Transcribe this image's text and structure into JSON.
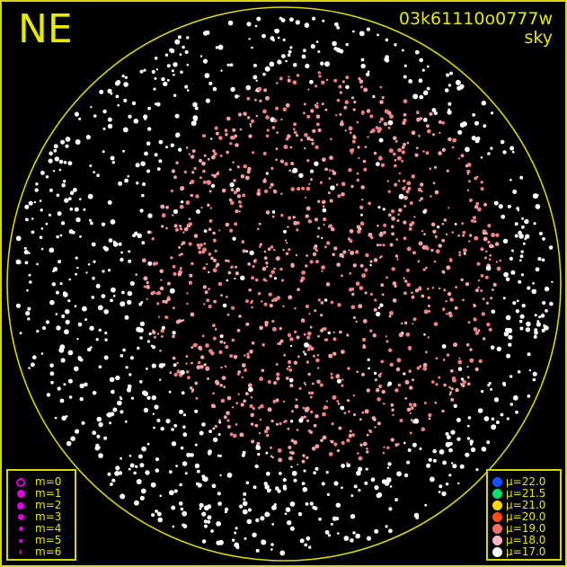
{
  "header": {
    "direction": "NE",
    "filename": "03k61110o0777w",
    "image_type": "sky"
  },
  "colors": {
    "frame": "#e8e800",
    "horizon_circle": "#e8e800",
    "magnitude_symbol": "#e000e0"
  },
  "magnitude_legend": [
    {
      "label": "m=0",
      "style": "ring"
    },
    {
      "label": "m=1",
      "style": "dot"
    },
    {
      "label": "m=2",
      "style": "dot"
    },
    {
      "label": "m=3",
      "style": "dot"
    },
    {
      "label": "m=4",
      "style": "dot"
    },
    {
      "label": "m=5",
      "style": "dot"
    },
    {
      "label": "m=6",
      "style": "dot"
    }
  ],
  "brightness_legend": [
    {
      "label": "μ=22.0",
      "color": "#1050ff"
    },
    {
      "label": "μ=21.5",
      "color": "#00e070"
    },
    {
      "label": "μ=21.0",
      "color": "#ffd800"
    },
    {
      "label": "μ=20.0",
      "color": "#ff5010"
    },
    {
      "label": "μ=19.0",
      "color": "#f07070"
    },
    {
      "label": "μ=18.0",
      "color": "#ffb8c8"
    },
    {
      "label": "μ=17.0",
      "color": "#ffffff"
    }
  ]
}
